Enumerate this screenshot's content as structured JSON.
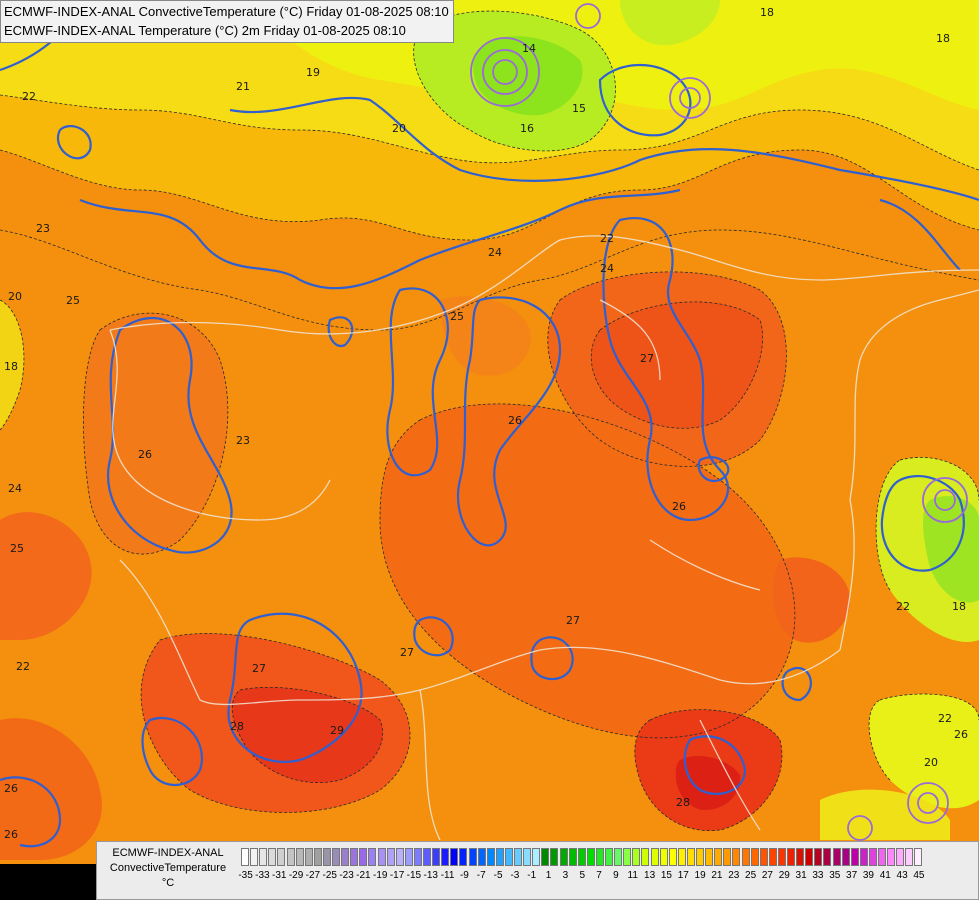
{
  "header": {
    "line1": "ECMWF-INDEX-ANAL ConvectiveTemperature (°C) Friday 01-08-2025 08:10",
    "line2": "ECMWF-INDEX-ANAL Temperature (°C) 2m Friday 01-08-2025 08:10"
  },
  "legend": {
    "line1": "ECMWF-INDEX-ANAL",
    "line2": "ConvectiveTemperature",
    "line3": "°C",
    "ticks": [
      "-35",
      "-33",
      "-31",
      "-29",
      "-27",
      "-25",
      "-23",
      "-21",
      "-19",
      "-17",
      "-15",
      "-13",
      "-11",
      "-9",
      "-7",
      "-5",
      "-3",
      "-1",
      "1",
      "3",
      "5",
      "7",
      "9",
      "11",
      "13",
      "15",
      "17",
      "19",
      "21",
      "23",
      "25",
      "27",
      "29",
      "31",
      "33",
      "35",
      "37",
      "39",
      "41",
      "43",
      "45"
    ],
    "colors": [
      "#ffffff",
      "#f2f2f2",
      "#e6e6e6",
      "#dadada",
      "#cfcfcf",
      "#c4c4c4",
      "#b8b8b8",
      "#adadad",
      "#a0a0a0",
      "#9a94a8",
      "#9a8cb8",
      "#9a80c8",
      "#9a74d8",
      "#9a68e8",
      "#9a80f0",
      "#a890f4",
      "#b0a0f8",
      "#b8b0ff",
      "#9c9cff",
      "#7c7cff",
      "#5c5cff",
      "#3c3cff",
      "#1c1cff",
      "#0000ff",
      "#0022ff",
      "#0044ff",
      "#0066ff",
      "#0088ff",
      "#22a0ff",
      "#44b8ff",
      "#66ccff",
      "#88ddff",
      "#aaeeff",
      "#008800",
      "#009900",
      "#00aa00",
      "#00bb00",
      "#00cc00",
      "#00dd00",
      "#22e822",
      "#44f044",
      "#66f866",
      "#88ff44",
      "#aaff22",
      "#ccff00",
      "#ddff00",
      "#eeff00",
      "#ffff00",
      "#ffee00",
      "#ffdd00",
      "#ffcc00",
      "#ffbb00",
      "#ffaa00",
      "#ff9900",
      "#ff8800",
      "#ff7700",
      "#ff6600",
      "#ff5500",
      "#ff4400",
      "#ff3300",
      "#ee2200",
      "#dd1100",
      "#cc0000",
      "#bb0022",
      "#aa0044",
      "#aa0066",
      "#aa0088",
      "#bb00aa",
      "#cc22cc",
      "#dd44dd",
      "#ee66ee",
      "#ff88ff",
      "#ffaaff",
      "#ffccff",
      "#ffeeff"
    ]
  },
  "contour_labels": [
    "22",
    "23",
    "25",
    "24",
    "22",
    "24",
    "26",
    "25",
    "27",
    "26",
    "27",
    "28",
    "29",
    "27",
    "26",
    "25",
    "22",
    "23",
    "20",
    "18",
    "19",
    "14",
    "15",
    "16",
    "18",
    "21",
    "20",
    "22",
    "18",
    "26",
    "28",
    "26",
    "18",
    "20",
    "22",
    "26",
    "24",
    "27"
  ]
}
